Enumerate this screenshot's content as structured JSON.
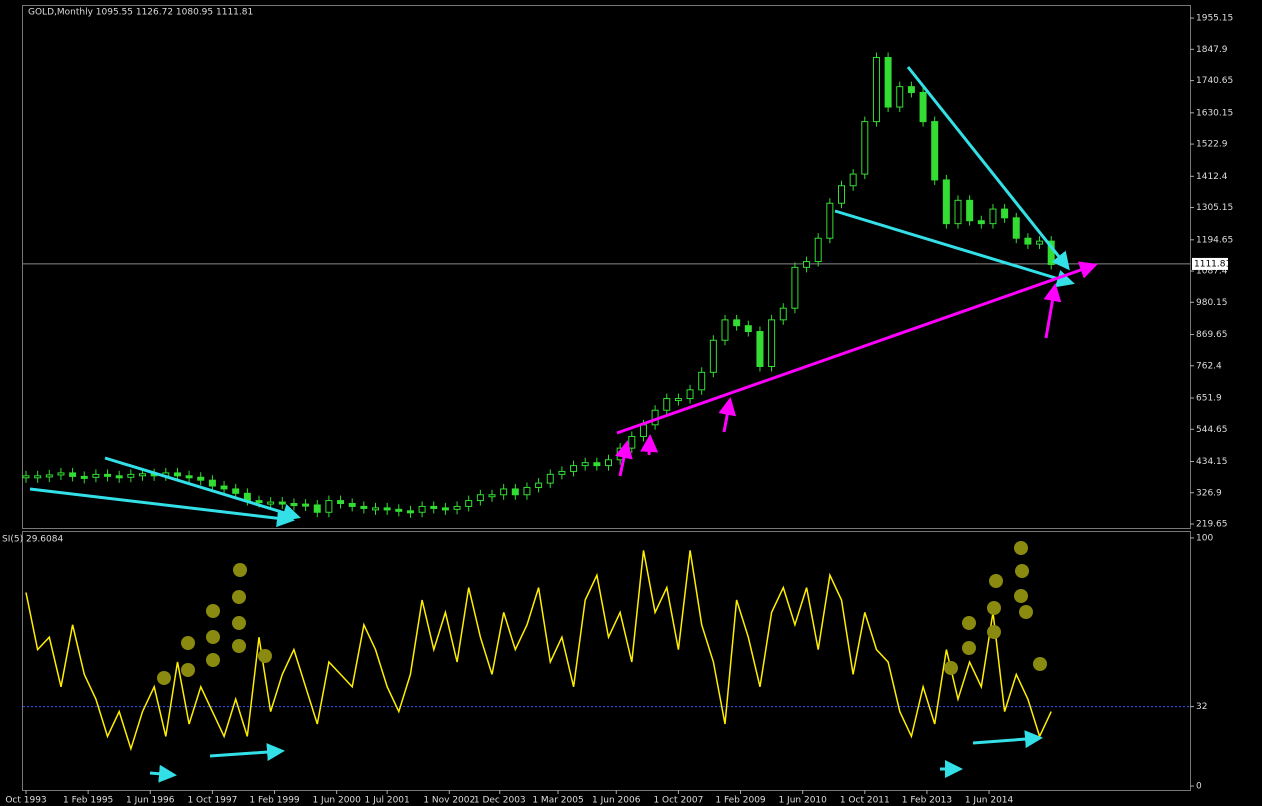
{
  "chart_data": {
    "type": "candlestick",
    "title": "GOLD,Monthly  1095.55 1126.72 1080.95 1111.81",
    "start": "Oct 1993",
    "values": [
      385,
      385,
      388,
      395,
      383,
      380,
      390,
      385,
      380,
      390,
      392,
      385,
      395,
      385,
      380,
      370,
      350,
      340,
      325,
      300,
      295,
      295,
      290,
      288,
      285,
      260,
      300,
      290,
      280,
      275,
      275,
      270,
      265,
      260,
      280,
      275,
      270,
      280,
      300,
      320,
      320,
      340,
      320,
      345,
      360,
      390,
      400,
      420,
      430,
      420,
      440,
      480,
      520,
      560,
      610,
      650,
      650,
      680,
      740,
      850,
      920,
      900,
      880,
      760,
      920,
      960,
      1100,
      1120,
      1200,
      1320,
      1380,
      1420,
      1600,
      1820,
      1650,
      1720,
      1700,
      1600,
      1400,
      1250,
      1330,
      1260,
      1250,
      1300,
      1270,
      1200,
      1180,
      1190,
      1110
    ],
    "color": "#33dd33",
    "ylim": [
      206,
      2000
    ],
    "yticks": [
      1955.15,
      1847.9,
      1740.65,
      1630.15,
      1522.9,
      1412.4,
      1305.15,
      1194.65,
      1087.4,
      980.15,
      869.65,
      762.4,
      651.9,
      544.65,
      434.15,
      326.9,
      219.65
    ],
    "last_price": 1111.81,
    "xticks": [
      "Oct 1993",
      "1 Feb 1995",
      "1 Jun 1996",
      "1 Oct 1997",
      "1 Feb 1999",
      "1 Jun 2000",
      "1 Jul 2001",
      "1 Nov 2002",
      "1 Dec 2003",
      "1 Mar 2005",
      "1 Jun 2006",
      "1 Oct 2007",
      "1 Feb 2009",
      "1 Jun 2010",
      "1 Oct 2011",
      "1 Feb 2013",
      "1 Jun 2014"
    ],
    "indicator": {
      "title": "SI(5) 29.6084",
      "color": "#ffee00",
      "values": [
        78,
        55,
        60,
        40,
        65,
        45,
        35,
        20,
        30,
        15,
        30,
        40,
        20,
        50,
        25,
        40,
        30,
        20,
        35,
        20,
        60,
        30,
        45,
        55,
        40,
        25,
        50,
        45,
        40,
        65,
        55,
        40,
        30,
        45,
        75,
        55,
        70,
        50,
        80,
        60,
        45,
        70,
        55,
        65,
        80,
        50,
        60,
        40,
        75,
        85,
        60,
        70,
        50,
        95,
        70,
        80,
        55,
        95,
        65,
        50,
        25,
        75,
        60,
        40,
        70,
        80,
        65,
        80,
        55,
        85,
        75,
        45,
        70,
        55,
        50,
        30,
        20,
        40,
        25,
        55,
        35,
        50,
        40,
        70,
        30,
        45,
        35,
        20,
        30
      ],
      "ylim": [
        -1.6,
        102.4
      ],
      "yticks": [
        100,
        32,
        0
      ],
      "level": 32
    }
  }
}
